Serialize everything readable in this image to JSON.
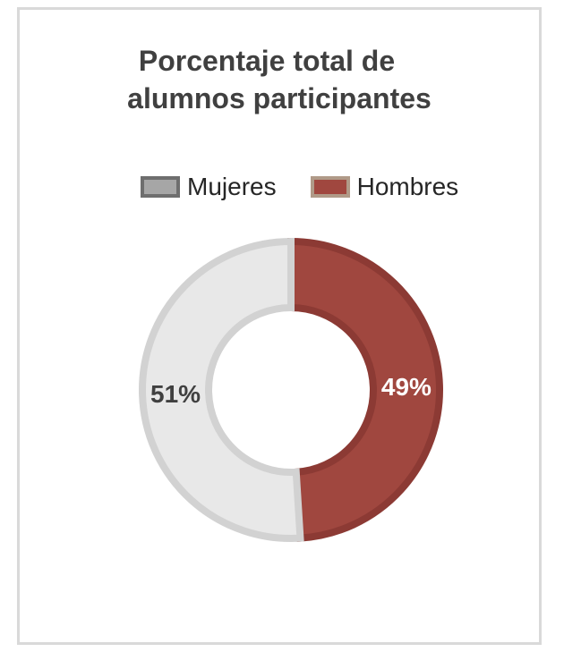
{
  "chart_data": {
    "type": "pie",
    "title": "Porcentaje total de alumnos participantes",
    "title_lines": [
      "Porcentaje total de",
      "alumnos participantes"
    ],
    "categories": [
      "Hombres",
      "Mujeres"
    ],
    "values": [
      49,
      51
    ],
    "data_labels": [
      "49%",
      "51%"
    ],
    "colors": [
      "#a0473f",
      "#e8e8e8"
    ],
    "edge_colors": [
      "#8c3a34",
      "#d2d2d2"
    ],
    "legend": [
      {
        "label": "Mujeres",
        "swatch": "#a6a6a6",
        "edge": "#6e6e6e"
      },
      {
        "label": "Hombres",
        "swatch": "#a0473f",
        "edge": "#b09a88"
      }
    ],
    "legend_position": "top",
    "donut": true,
    "label_colors": [
      "#ffffff",
      "#404040"
    ]
  }
}
